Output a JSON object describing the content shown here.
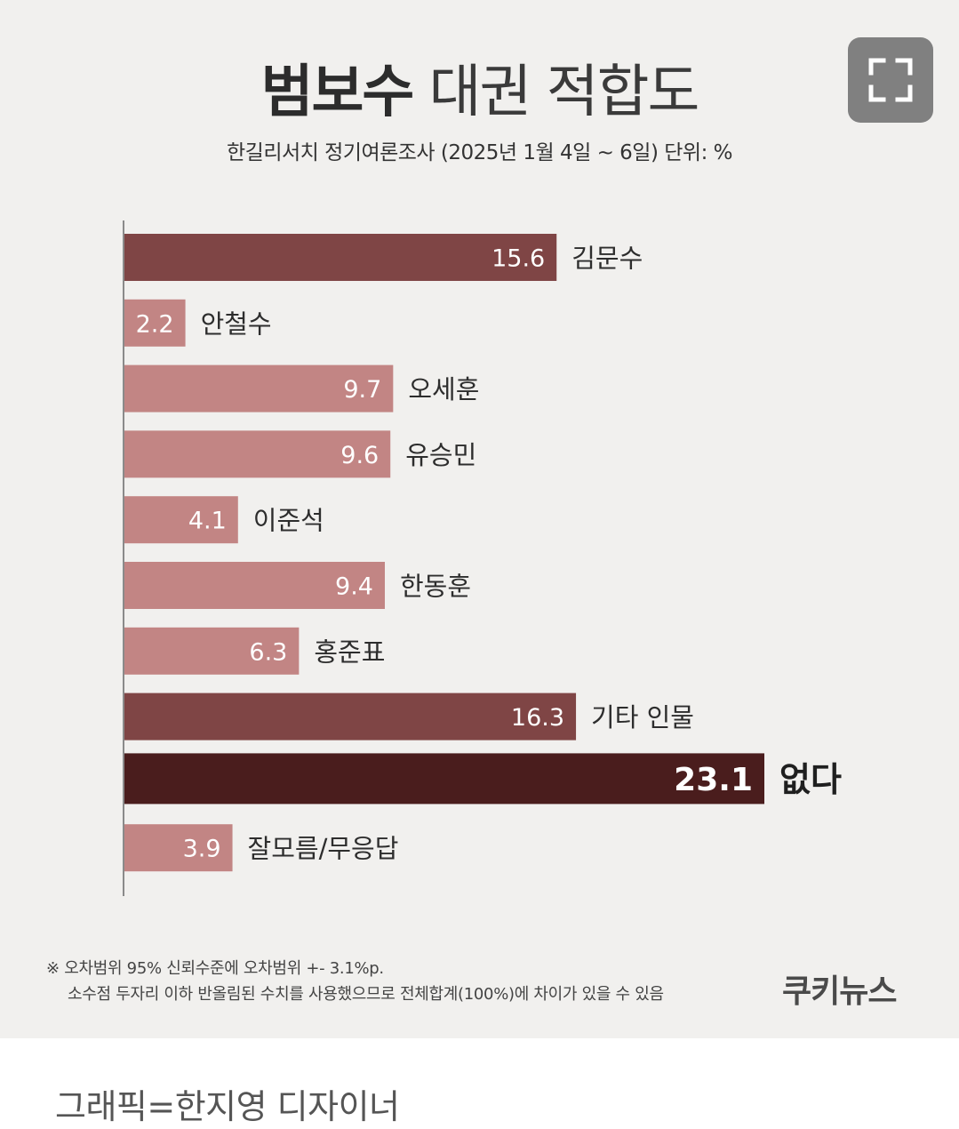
{
  "header": {
    "title_bold": "범보수",
    "title_rest": "대권 적합도",
    "subtitle": "한길리서치 정기여론조사 (2025년 1월 4일 ~ 6일) 단위: %"
  },
  "chart_data": {
    "type": "bar",
    "orientation": "horizontal",
    "categories": [
      "김문수",
      "안철수",
      "오세훈",
      "유승민",
      "이준석",
      "한동훈",
      "홍준표",
      "기타 인물",
      "없다",
      "잘모름/무응답"
    ],
    "values": [
      15.6,
      2.2,
      9.7,
      9.6,
      4.1,
      9.4,
      6.3,
      16.3,
      23.1,
      3.9
    ],
    "value_labels": [
      "15.6",
      "2.2",
      "9.7",
      "9.6",
      "4.1",
      "9.4",
      "6.3",
      "16.3",
      "23.1",
      "3.9"
    ],
    "colors": [
      "#7f4545",
      "#c28584",
      "#c28584",
      "#c28584",
      "#c28584",
      "#c28584",
      "#c28584",
      "#7f4545",
      "#4a1d1d",
      "#c28584"
    ],
    "highlight_index": 8,
    "xlim": [
      0,
      23.1
    ],
    "grid": false,
    "unit": "%"
  },
  "footnote": {
    "line1": "※ 오차범위 95% 신뢰수준에 오차범위 +- 3.1%p.",
    "line2": "소수점 두자리 이하 반올림된 수치를 사용했으므로 전체합계(100%)에 차이가 있을 수 있음"
  },
  "publisher": "쿠키뉴스",
  "caption": "그래픽=한지영 디자이너",
  "icons": {
    "expand": "expand-icon"
  }
}
